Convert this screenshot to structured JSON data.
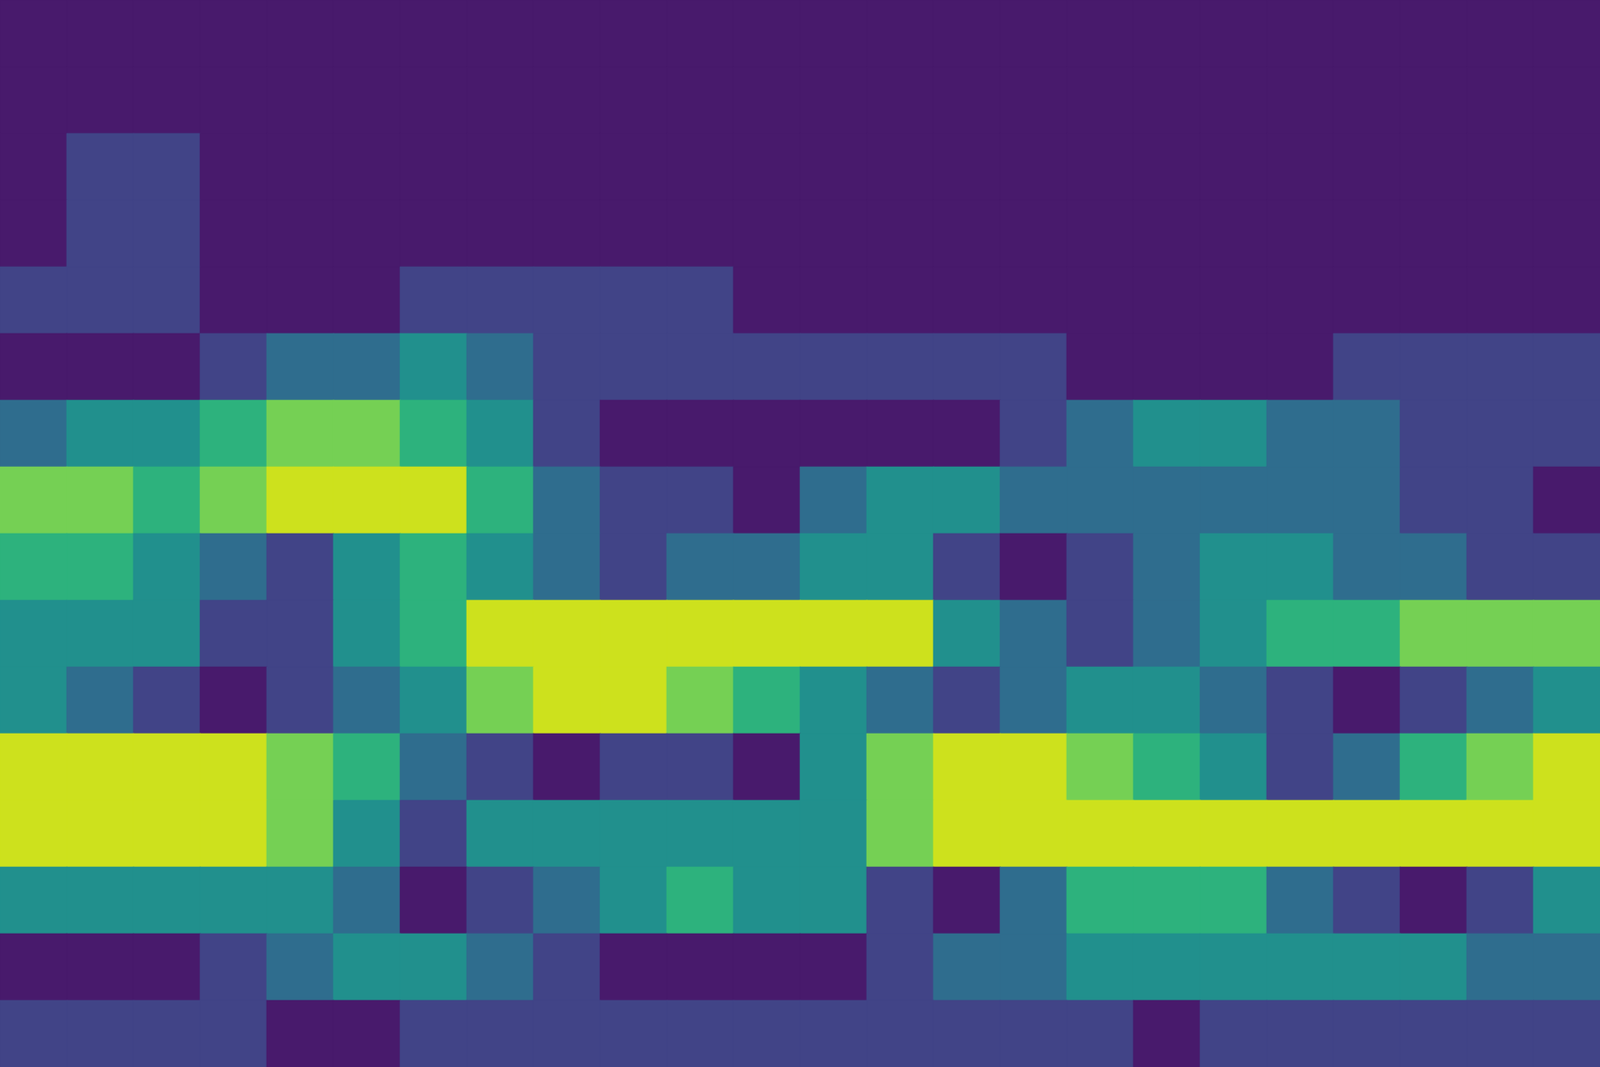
{
  "chart_data": {
    "type": "contour",
    "tick_labels": false,
    "levels": [
      0,
      1,
      2,
      3,
      4,
      5,
      6,
      7
    ],
    "colors": [
      "#481a6c",
      "#414487",
      "#2f6d8e",
      "#21908d",
      "#2db27d",
      "#75d054",
      "#cde11d"
    ],
    "cells": [
      [
        0,
        0,
        0,
        0,
        0,
        0,
        0,
        0,
        0,
        0,
        0,
        0,
        0,
        0,
        0,
        0,
        0,
        0,
        0,
        0,
        0,
        0,
        0,
        0
      ],
      [
        0,
        0,
        0,
        0,
        0,
        0,
        0,
        0,
        0,
        0,
        0,
        0,
        0,
        0,
        0,
        0,
        0,
        0,
        0,
        0,
        0,
        0,
        0,
        0
      ],
      [
        0,
        1,
        1,
        0,
        0,
        0,
        0,
        0,
        0,
        0,
        0,
        0,
        0,
        0,
        0,
        0,
        0,
        0,
        0,
        0,
        0,
        0,
        0,
        0
      ],
      [
        0,
        1,
        1,
        0,
        0,
        0,
        0,
        0,
        0,
        0,
        0,
        0,
        0,
        0,
        0,
        0,
        0,
        0,
        0,
        0,
        0,
        0,
        0,
        0
      ],
      [
        1,
        1,
        1,
        0,
        0,
        0,
        1,
        1,
        1,
        1,
        1,
        0,
        0,
        0,
        0,
        0,
        0,
        0,
        0,
        0,
        0,
        0,
        0,
        0
      ],
      [
        0,
        0,
        0,
        1,
        2,
        2,
        3,
        2,
        1,
        1,
        1,
        1,
        1,
        1,
        1,
        1,
        0,
        0,
        0,
        0,
        1,
        1,
        1,
        1
      ],
      [
        2,
        3,
        3,
        4,
        5,
        5,
        4,
        3,
        1,
        0,
        0,
        0,
        0,
        0,
        0,
        1,
        2,
        3,
        3,
        2,
        2,
        1,
        1,
        1
      ],
      [
        5,
        5,
        4,
        5,
        6,
        6,
        6,
        4,
        2,
        1,
        1,
        0,
        2,
        3,
        3,
        2,
        2,
        2,
        2,
        2,
        2,
        1,
        1,
        0
      ],
      [
        4,
        4,
        3,
        2,
        1,
        3,
        4,
        3,
        2,
        1,
        2,
        2,
        3,
        3,
        1,
        0,
        1,
        2,
        3,
        3,
        2,
        2,
        1,
        1
      ],
      [
        3,
        3,
        3,
        1,
        1,
        3,
        4,
        6,
        6,
        6,
        6,
        6,
        6,
        6,
        3,
        2,
        1,
        2,
        3,
        4,
        4,
        5,
        5,
        5
      ],
      [
        3,
        2,
        1,
        0,
        1,
        2,
        3,
        5,
        6,
        6,
        5,
        4,
        3,
        2,
        1,
        2,
        3,
        3,
        2,
        1,
        0,
        1,
        2,
        3
      ],
      [
        6,
        6,
        6,
        6,
        5,
        4,
        2,
        1,
        0,
        1,
        1,
        0,
        3,
        5,
        6,
        6,
        5,
        4,
        3,
        1,
        2,
        4,
        5,
        6
      ],
      [
        6,
        6,
        6,
        6,
        5,
        3,
        1,
        3,
        3,
        3,
        3,
        3,
        3,
        5,
        6,
        6,
        6,
        6,
        6,
        6,
        6,
        6,
        6,
        6
      ],
      [
        3,
        3,
        3,
        3,
        3,
        2,
        0,
        1,
        2,
        3,
        4,
        3,
        3,
        1,
        0,
        2,
        4,
        4,
        4,
        2,
        1,
        0,
        1,
        3
      ],
      [
        0,
        0,
        0,
        1,
        2,
        3,
        3,
        2,
        1,
        0,
        0,
        0,
        0,
        1,
        2,
        2,
        3,
        3,
        3,
        3,
        3,
        3,
        2,
        2
      ],
      [
        1,
        1,
        1,
        1,
        0,
        0,
        1,
        1,
        1,
        1,
        1,
        1,
        1,
        1,
        1,
        1,
        1,
        0,
        1,
        1,
        1,
        1,
        1,
        1
      ]
    ]
  }
}
